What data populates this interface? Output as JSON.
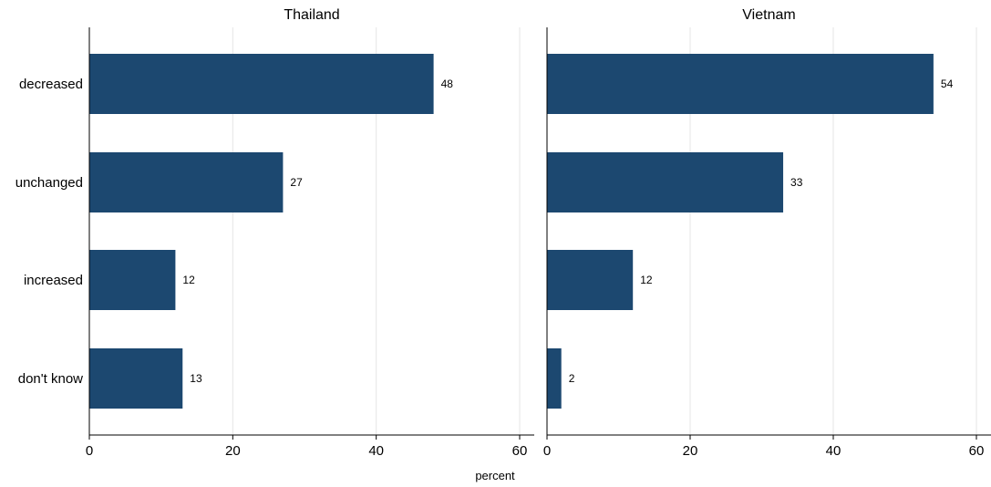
{
  "chart_data": {
    "type": "bar",
    "orientation": "horizontal",
    "categories": [
      "decreased",
      "unchanged",
      "increased",
      "don't know"
    ],
    "panels": [
      {
        "title": "Thailand",
        "values": [
          48,
          27,
          12,
          13
        ]
      },
      {
        "title": "Vietnam",
        "values": [
          54,
          33,
          12,
          2
        ]
      }
    ],
    "xlabel": "percent",
    "xlim": [
      0,
      60
    ],
    "xticks": [
      0,
      20,
      40,
      60
    ],
    "grid": true,
    "bar_color": "#1c4870"
  }
}
